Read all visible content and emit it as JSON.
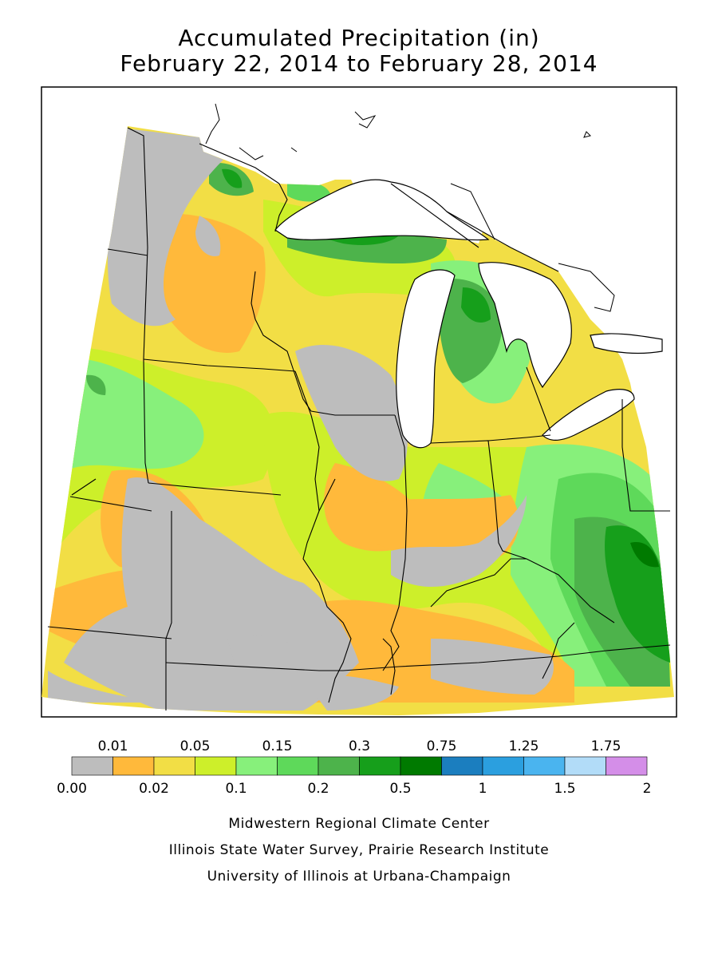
{
  "title": {
    "line1": "Accumulated Precipitation (in)",
    "line2": "February 22, 2014 to February 28, 2014"
  },
  "legend": {
    "colors": [
      "#bdbdbd",
      "#ffb93b",
      "#f2de45",
      "#cdef2a",
      "#87f07b",
      "#5ed95a",
      "#4db34b",
      "#169f1b",
      "#007a00",
      "#1b7ebf",
      "#2b9fdf",
      "#4ab4ef",
      "#b2dcf8",
      "#d48ee8"
    ],
    "top_labels": [
      "0.01",
      "0.05",
      "0.15",
      "0.3",
      "0.75",
      "1.25",
      "1.75"
    ],
    "bottom_labels": [
      "0.00",
      "0.02",
      "0.1",
      "0.2",
      "0.5",
      "1",
      "1.5",
      "2"
    ]
  },
  "credits": {
    "line1": "Midwestern Regional Climate Center",
    "line2": "Illinois State Water Survey, Prairie Research Institute",
    "line3": "University of Illinois at Urbana-Champaign"
  }
}
